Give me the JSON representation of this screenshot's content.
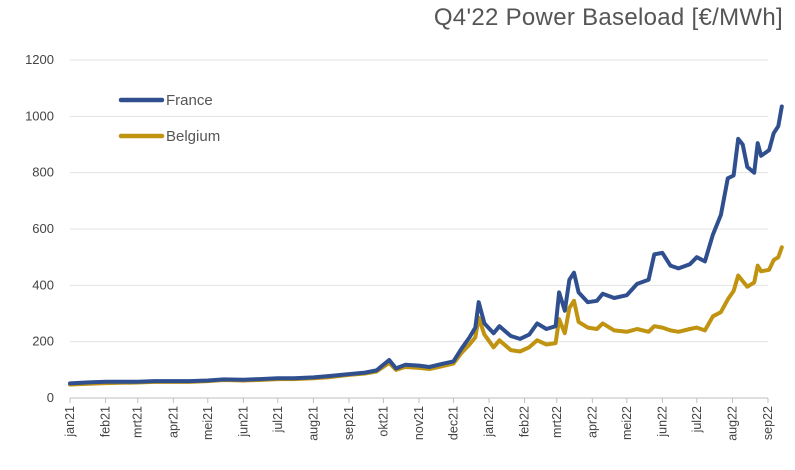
{
  "chart_data": {
    "type": "line",
    "title": "Q4'22 Power Baseload [€/MWh]",
    "xlabel": "",
    "ylabel": "",
    "ylim": [
      0,
      1200
    ],
    "yticks": [
      0,
      200,
      400,
      600,
      800,
      1000,
      1200
    ],
    "grid": "horizontal",
    "legend_position": "top-left",
    "x_tick_labels": [
      "jan21",
      "feb21",
      "mrt21",
      "apr21",
      "mei21",
      "jun21",
      "jul21",
      "aug21",
      "sep21",
      "okt21",
      "nov21",
      "dec21",
      "jan22",
      "feb22",
      "mrt22",
      "apr22",
      "mei22",
      "jun22",
      "jul22",
      "aug22",
      "sep22"
    ],
    "series": [
      {
        "name": "France",
        "color": "#2F4F8F",
        "points": [
          [
            "2021-01-01",
            52
          ],
          [
            "2021-01-15",
            55
          ],
          [
            "2021-02-01",
            58
          ],
          [
            "2021-02-15",
            58
          ],
          [
            "2021-03-01",
            58
          ],
          [
            "2021-03-15",
            60
          ],
          [
            "2021-04-01",
            60
          ],
          [
            "2021-04-15",
            60
          ],
          [
            "2021-05-01",
            62
          ],
          [
            "2021-05-15",
            66
          ],
          [
            "2021-06-01",
            65
          ],
          [
            "2021-06-15",
            67
          ],
          [
            "2021-07-01",
            70
          ],
          [
            "2021-07-15",
            70
          ],
          [
            "2021-08-01",
            73
          ],
          [
            "2021-08-15",
            78
          ],
          [
            "2021-09-01",
            85
          ],
          [
            "2021-09-15",
            90
          ],
          [
            "2021-09-25",
            98
          ],
          [
            "2021-10-06",
            135
          ],
          [
            "2021-10-12",
            105
          ],
          [
            "2021-10-20",
            118
          ],
          [
            "2021-11-01",
            115
          ],
          [
            "2021-11-10",
            110
          ],
          [
            "2021-11-20",
            120
          ],
          [
            "2021-12-01",
            130
          ],
          [
            "2021-12-08",
            175
          ],
          [
            "2021-12-15",
            215
          ],
          [
            "2021-12-20",
            250
          ],
          [
            "2021-12-23",
            340
          ],
          [
            "2021-12-28",
            265
          ],
          [
            "2022-01-05",
            230
          ],
          [
            "2022-01-10",
            255
          ],
          [
            "2022-01-20",
            220
          ],
          [
            "2022-01-28",
            210
          ],
          [
            "2022-02-05",
            225
          ],
          [
            "2022-02-12",
            265
          ],
          [
            "2022-02-20",
            245
          ],
          [
            "2022-02-28",
            255
          ],
          [
            "2022-03-03",
            375
          ],
          [
            "2022-03-08",
            310
          ],
          [
            "2022-03-12",
            420
          ],
          [
            "2022-03-16",
            445
          ],
          [
            "2022-03-20",
            375
          ],
          [
            "2022-03-28",
            340
          ],
          [
            "2022-04-05",
            345
          ],
          [
            "2022-04-10",
            370
          ],
          [
            "2022-04-20",
            355
          ],
          [
            "2022-05-01",
            365
          ],
          [
            "2022-05-10",
            405
          ],
          [
            "2022-05-20",
            420
          ],
          [
            "2022-05-25",
            510
          ],
          [
            "2022-06-01",
            515
          ],
          [
            "2022-06-08",
            470
          ],
          [
            "2022-06-15",
            460
          ],
          [
            "2022-06-25",
            475
          ],
          [
            "2022-07-01",
            500
          ],
          [
            "2022-07-08",
            485
          ],
          [
            "2022-07-15",
            580
          ],
          [
            "2022-07-22",
            650
          ],
          [
            "2022-07-28",
            780
          ],
          [
            "2022-08-02",
            790
          ],
          [
            "2022-08-06",
            920
          ],
          [
            "2022-08-10",
            900
          ],
          [
            "2022-08-14",
            820
          ],
          [
            "2022-08-20",
            800
          ],
          [
            "2022-08-23",
            905
          ],
          [
            "2022-08-26",
            860
          ],
          [
            "2022-09-02",
            880
          ],
          [
            "2022-09-06",
            940
          ],
          [
            "2022-09-10",
            965
          ],
          [
            "2022-09-13",
            1035
          ]
        ]
      },
      {
        "name": "Belgium",
        "color": "#C09410",
        "points": [
          [
            "2021-01-01",
            48
          ],
          [
            "2021-01-15",
            50
          ],
          [
            "2021-02-01",
            53
          ],
          [
            "2021-02-15",
            54
          ],
          [
            "2021-03-01",
            55
          ],
          [
            "2021-03-15",
            57
          ],
          [
            "2021-04-01",
            57
          ],
          [
            "2021-04-15",
            57
          ],
          [
            "2021-05-01",
            60
          ],
          [
            "2021-05-15",
            64
          ],
          [
            "2021-06-01",
            62
          ],
          [
            "2021-06-15",
            64
          ],
          [
            "2021-07-01",
            67
          ],
          [
            "2021-07-15",
            67
          ],
          [
            "2021-08-01",
            70
          ],
          [
            "2021-08-15",
            74
          ],
          [
            "2021-09-01",
            82
          ],
          [
            "2021-09-15",
            87
          ],
          [
            "2021-09-25",
            94
          ],
          [
            "2021-10-06",
            125
          ],
          [
            "2021-10-12",
            100
          ],
          [
            "2021-10-20",
            110
          ],
          [
            "2021-11-01",
            107
          ],
          [
            "2021-11-10",
            103
          ],
          [
            "2021-11-20",
            112
          ],
          [
            "2021-12-01",
            122
          ],
          [
            "2021-12-08",
            160
          ],
          [
            "2021-12-15",
            190
          ],
          [
            "2021-12-20",
            215
          ],
          [
            "2021-12-23",
            285
          ],
          [
            "2021-12-28",
            225
          ],
          [
            "2022-01-05",
            180
          ],
          [
            "2022-01-10",
            205
          ],
          [
            "2022-01-20",
            170
          ],
          [
            "2022-01-28",
            165
          ],
          [
            "2022-02-05",
            180
          ],
          [
            "2022-02-12",
            205
          ],
          [
            "2022-02-20",
            190
          ],
          [
            "2022-02-28",
            195
          ],
          [
            "2022-03-03",
            280
          ],
          [
            "2022-03-08",
            230
          ],
          [
            "2022-03-12",
            320
          ],
          [
            "2022-03-16",
            345
          ],
          [
            "2022-03-20",
            270
          ],
          [
            "2022-03-28",
            250
          ],
          [
            "2022-04-05",
            245
          ],
          [
            "2022-04-10",
            265
          ],
          [
            "2022-04-20",
            240
          ],
          [
            "2022-05-01",
            235
          ],
          [
            "2022-05-10",
            245
          ],
          [
            "2022-05-20",
            235
          ],
          [
            "2022-05-25",
            255
          ],
          [
            "2022-06-01",
            250
          ],
          [
            "2022-06-08",
            240
          ],
          [
            "2022-06-15",
            235
          ],
          [
            "2022-06-25",
            245
          ],
          [
            "2022-07-01",
            250
          ],
          [
            "2022-07-08",
            240
          ],
          [
            "2022-07-15",
            290
          ],
          [
            "2022-07-22",
            305
          ],
          [
            "2022-07-28",
            350
          ],
          [
            "2022-08-02",
            380
          ],
          [
            "2022-08-06",
            435
          ],
          [
            "2022-08-10",
            415
          ],
          [
            "2022-08-14",
            395
          ],
          [
            "2022-08-20",
            410
          ],
          [
            "2022-08-23",
            470
          ],
          [
            "2022-08-26",
            450
          ],
          [
            "2022-09-02",
            455
          ],
          [
            "2022-09-06",
            490
          ],
          [
            "2022-09-10",
            500
          ],
          [
            "2022-09-13",
            535
          ]
        ]
      }
    ]
  }
}
